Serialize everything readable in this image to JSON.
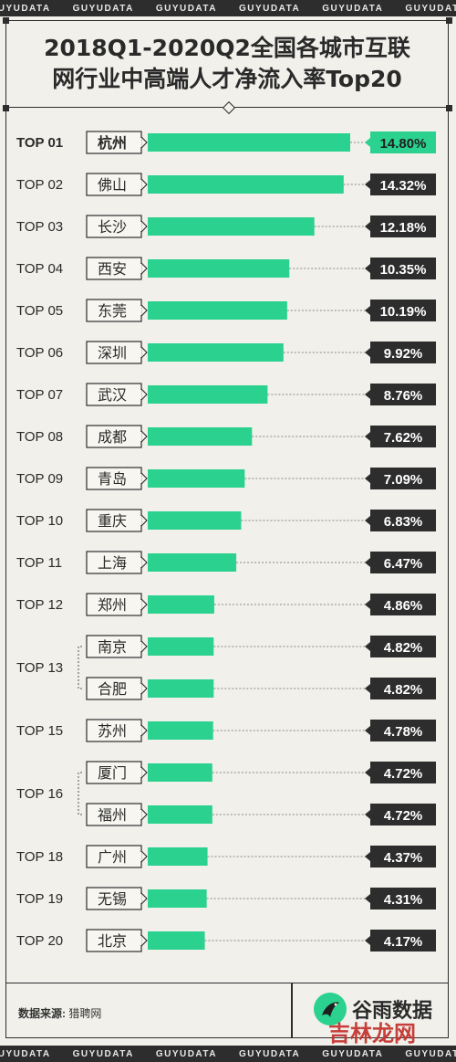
{
  "band_text": "GUYUDATA",
  "title": {
    "line1": "2018Q1-2020Q2全国各城市互联",
    "line2": "网行业中高端人才净流入率Top20"
  },
  "chart_data": {
    "type": "bar",
    "orientation": "horizontal",
    "title": "2018Q1-2020Q2全国各城市互联网行业中高端人才净流入率Top20",
    "unit": "%",
    "ranks": [
      {
        "label": "TOP 01",
        "cities": [
          "杭州"
        ]
      },
      {
        "label": "TOP 02",
        "cities": [
          "佛山"
        ]
      },
      {
        "label": "TOP 03",
        "cities": [
          "长沙"
        ]
      },
      {
        "label": "TOP 04",
        "cities": [
          "西安"
        ]
      },
      {
        "label": "TOP 05",
        "cities": [
          "东莞"
        ]
      },
      {
        "label": "TOP 06",
        "cities": [
          "深圳"
        ]
      },
      {
        "label": "TOP 07",
        "cities": [
          "武汉"
        ]
      },
      {
        "label": "TOP 08",
        "cities": [
          "成都"
        ]
      },
      {
        "label": "TOP 09",
        "cities": [
          "青岛"
        ]
      },
      {
        "label": "TOP 10",
        "cities": [
          "重庆"
        ]
      },
      {
        "label": "TOP 11",
        "cities": [
          "上海"
        ]
      },
      {
        "label": "TOP 12",
        "cities": [
          "郑州"
        ]
      },
      {
        "label": "TOP 13",
        "cities": [
          "南京",
          "合肥"
        ]
      },
      {
        "label": "TOP 15",
        "cities": [
          "苏州"
        ]
      },
      {
        "label": "TOP 16",
        "cities": [
          "厦门",
          "福州"
        ]
      },
      {
        "label": "TOP 18",
        "cities": [
          "广州"
        ]
      },
      {
        "label": "TOP 19",
        "cities": [
          "无锡"
        ]
      },
      {
        "label": "TOP 20",
        "cities": [
          "北京"
        ]
      }
    ],
    "categories": [
      "杭州",
      "佛山",
      "长沙",
      "西安",
      "东莞",
      "深圳",
      "武汉",
      "成都",
      "青岛",
      "重庆",
      "上海",
      "郑州",
      "南京",
      "合肥",
      "苏州",
      "厦门",
      "福州",
      "广州",
      "无锡",
      "北京"
    ],
    "values": [
      14.8,
      14.32,
      12.18,
      10.35,
      10.19,
      9.92,
      8.76,
      7.62,
      7.09,
      6.83,
      6.47,
      4.86,
      4.82,
      4.82,
      4.78,
      4.72,
      4.72,
      4.37,
      4.31,
      4.17
    ],
    "value_labels": [
      "14.80%",
      "14.32%",
      "12.18%",
      "10.35%",
      "10.19%",
      "9.92%",
      "8.76%",
      "7.62%",
      "7.09%",
      "6.83%",
      "6.47%",
      "4.86%",
      "4.82%",
      "4.82%",
      "4.78%",
      "4.72%",
      "4.72%",
      "4.37%",
      "4.31%",
      "4.17%"
    ],
    "xlim": [
      0,
      14.8
    ],
    "colors": {
      "bar": "#2bd18e",
      "highlight_badge": "#2bd18e",
      "badge": "#2d2d2d"
    },
    "highlight_index": 0
  },
  "footer": {
    "source_label": "数据来源:",
    "source_value": "猎聘网",
    "brand_name": "谷雨数据",
    "brand_icon": "bird-logo-icon"
  },
  "watermark": "吉林龙网"
}
